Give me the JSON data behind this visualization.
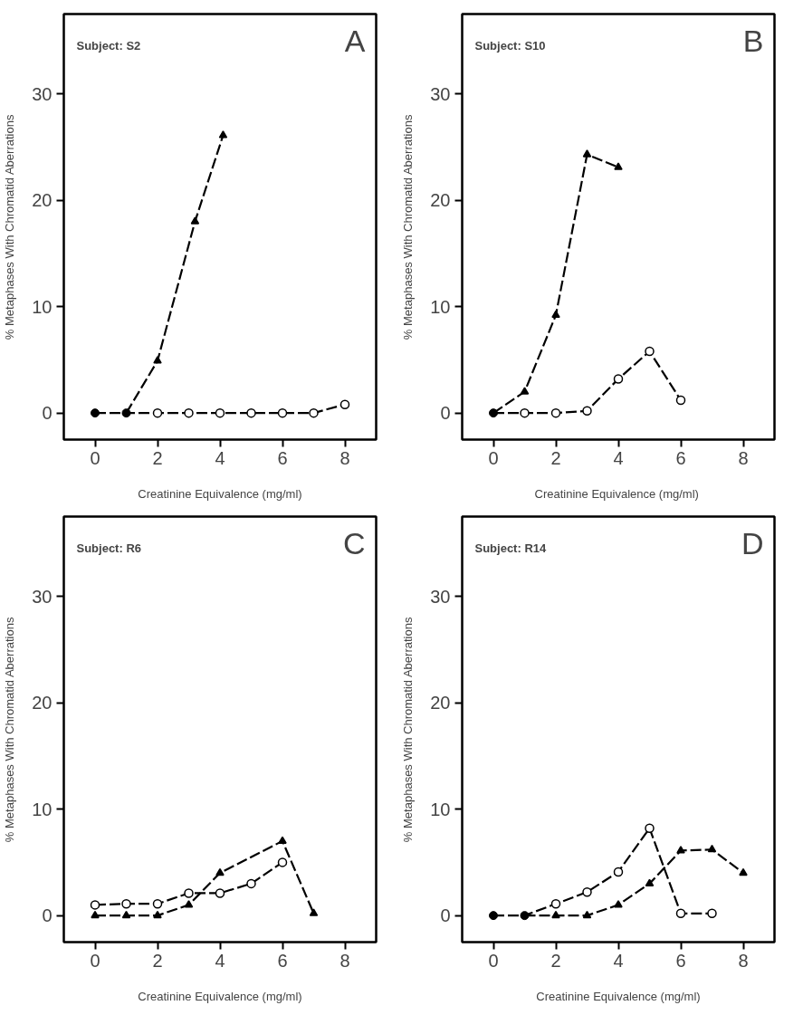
{
  "chart_data": [
    {
      "type": "line",
      "annotations": [
        "Subject: S2",
        "A"
      ],
      "xlabel": "Creatinine Equivalence (mg/ml)",
      "ylabel": "% Metaphases With Chromatid Aberrations",
      "xlim": [
        -1,
        9
      ],
      "ylim": [
        -2.5,
        37.5
      ],
      "xticks": [
        0,
        2,
        4,
        6,
        8
      ],
      "yticks": [
        0,
        10,
        20,
        30
      ],
      "grid": false,
      "line_style": "dashed",
      "series": [
        {
          "marker": "triangle",
          "color": "#000000",
          "x": [
            1,
            2,
            3.2,
            4.1
          ],
          "values": [
            0,
            4.9,
            18,
            26.1
          ]
        },
        {
          "marker": "circle",
          "color": "#000000",
          "x": [
            0,
            1,
            2,
            3,
            4,
            5,
            6,
            7,
            8
          ],
          "values": [
            0,
            0,
            0,
            0,
            0,
            0,
            0,
            0,
            0.8
          ]
        },
        {
          "type": "scatter",
          "marker": "circle",
          "color": "#000000",
          "x": [
            0,
            1
          ],
          "values": [
            0,
            0
          ]
        }
      ]
    },
    {
      "type": "line",
      "annotations": [
        "Subject: S10",
        "B"
      ],
      "xlabel": "Creatinine  Equivalence (mg/ml)",
      "ylabel": "% Metaphases With Chromatid Aberrations",
      "xlim": [
        -1,
        9
      ],
      "ylim": [
        -2.5,
        37.5
      ],
      "xticks": [
        0,
        2,
        4,
        6,
        8
      ],
      "yticks": [
        0,
        10,
        20,
        30
      ],
      "grid": false,
      "line_style": "dashed",
      "series": [
        {
          "marker": "triangle",
          "color": "#000000",
          "x": [
            0,
            1,
            2,
            3,
            4
          ],
          "values": [
            0,
            2,
            9.2,
            24.3,
            23.1
          ]
        },
        {
          "marker": "circle",
          "color": "#000000",
          "x": [
            0,
            1,
            2,
            3,
            4,
            5,
            6
          ],
          "values": [
            0,
            0,
            0,
            0.2,
            3.2,
            5.8,
            1.2
          ]
        },
        {
          "type": "scatter",
          "marker": "circle",
          "color": "#000000",
          "x": [
            0
          ],
          "values": [
            0
          ]
        }
      ]
    },
    {
      "type": "line",
      "annotations": [
        "Subject: R6",
        "C"
      ],
      "xlabel": "Creatinine Equivalence (mg/ml)",
      "ylabel": "% Metaphases With Chromatid Aberrations",
      "xlim": [
        -1,
        9
      ],
      "ylim": [
        -2.5,
        37.5
      ],
      "xticks": [
        0,
        2,
        4,
        6,
        8
      ],
      "yticks": [
        0,
        10,
        20,
        30
      ],
      "grid": false,
      "line_style": "dashed",
      "series": [
        {
          "marker": "triangle",
          "color": "#000000",
          "x": [
            0,
            1,
            2,
            3,
            4,
            6,
            7
          ],
          "values": [
            0,
            0,
            0,
            1,
            4,
            7,
            0.2
          ]
        },
        {
          "marker": "circle",
          "color": "#000000",
          "x": [
            0,
            1,
            2,
            3,
            4,
            5,
            6
          ],
          "values": [
            1,
            1.1,
            1.1,
            2.1,
            2.1,
            3,
            5
          ]
        }
      ]
    },
    {
      "type": "line",
      "annotations": [
        "Subject: R14",
        "D"
      ],
      "xlabel": "Creatinine Equivalence (mg/ml)",
      "ylabel": "% Metaphases With Chromatid Aberrations",
      "xlim": [
        -1,
        9
      ],
      "ylim": [
        -2.5,
        37.5
      ],
      "xticks": [
        0,
        2,
        4,
        6,
        8
      ],
      "yticks": [
        0,
        10,
        20,
        30
      ],
      "grid": false,
      "line_style": "dashed",
      "series": [
        {
          "marker": "triangle",
          "color": "#000000",
          "x": [
            1,
            2,
            3,
            4,
            5,
            6,
            7,
            8
          ],
          "values": [
            0,
            0,
            0,
            1,
            3,
            6.1,
            6.2,
            4
          ]
        },
        {
          "marker": "circle",
          "color": "#000000",
          "x": [
            0,
            1,
            2,
            3,
            4,
            5,
            6,
            7
          ],
          "values": [
            0,
            0,
            1.1,
            2.2,
            4.1,
            8.2,
            0.2,
            0.2
          ]
        },
        {
          "type": "scatter",
          "marker": "circle",
          "color": "#000000",
          "x": [
            0,
            1
          ],
          "values": [
            0,
            0
          ]
        }
      ]
    }
  ]
}
